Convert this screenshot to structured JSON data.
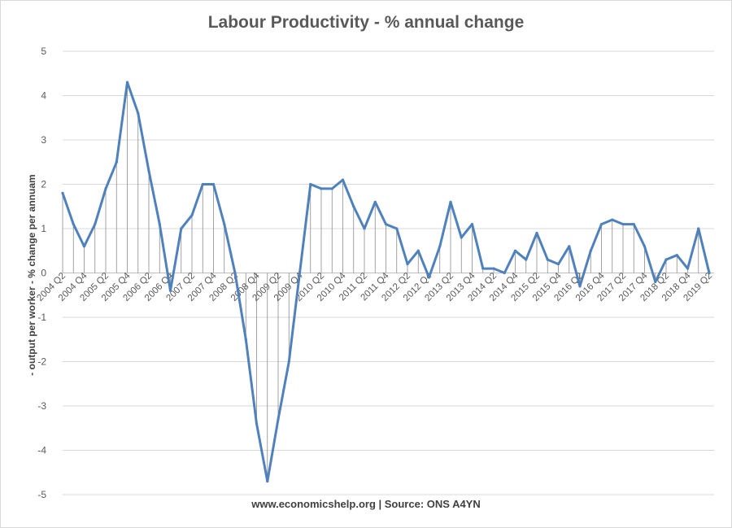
{
  "chart_data": {
    "type": "line",
    "title": "Labour Productivity - % annual change",
    "ylabel": "- output per worker - % change per annuam",
    "xlabel": "",
    "source": "www.economicshelp.org  | Source: ONS A4YN",
    "ylim": [
      -5,
      5
    ],
    "yticks": [
      -5,
      -4,
      -3,
      -2,
      -1,
      0,
      1,
      2,
      3,
      4,
      5
    ],
    "grid": true,
    "drop_lines": true,
    "legend": "none",
    "line_color": "#4f81bd",
    "categories": [
      "2004 Q2",
      "2004 Q3",
      "2004 Q4",
      "2005 Q1",
      "2005 Q2",
      "2005 Q3",
      "2005 Q4",
      "2006 Q1",
      "2006 Q2",
      "2006 Q3",
      "2006 Q4",
      "2007 Q1",
      "2007 Q2",
      "2007 Q3",
      "2007 Q4",
      "2008 Q1",
      "2008 Q2",
      "2008 Q3",
      "2008 Q4",
      "2009 Q1",
      "2009 Q2",
      "2009 Q3",
      "2009 Q4",
      "2010 Q1",
      "2010 Q2",
      "2010 Q3",
      "2010 Q4",
      "2011 Q1",
      "2011 Q2",
      "2011 Q3",
      "2011 Q4",
      "2012 Q1",
      "2012 Q2",
      "2012 Q3",
      "2012 Q4",
      "2013 Q1",
      "2013 Q2",
      "2013 Q3",
      "2013 Q4",
      "2014 Q1",
      "2014 Q2",
      "2014 Q3",
      "2014 Q4",
      "2015 Q1",
      "2015 Q2",
      "2015 Q3",
      "2015 Q4",
      "2016 Q1",
      "2016 Q2",
      "2016 Q3",
      "2016 Q4",
      "2017 Q1",
      "2017 Q2",
      "2017 Q3",
      "2017 Q4",
      "2018 Q1",
      "2018 Q2",
      "2018 Q3",
      "2018 Q4",
      "2019 Q1",
      "2019 Q2"
    ],
    "tick_labels": [
      "2004 Q2",
      "2004 Q4",
      "2005 Q2",
      "2005 Q4",
      "2006 Q2",
      "2006 Q4",
      "2007 Q2",
      "2007 Q4",
      "2008 Q2",
      "2008 Q4",
      "2009 Q2",
      "2009 Q4",
      "2010 Q2",
      "2010 Q4",
      "2011 Q2",
      "2011 Q4",
      "2012 Q2",
      "2012 Q4",
      "2013 Q2",
      "2013 Q4",
      "2014 Q2",
      "2014 Q4",
      "2015 Q2",
      "2015 Q4",
      "2016 Q2",
      "2016 Q4",
      "2017 Q2",
      "2017 Q4",
      "2018 Q2",
      "2018 Q4",
      "2019 Q2"
    ],
    "values": [
      1.8,
      1.1,
      0.6,
      1.1,
      1.9,
      2.5,
      4.3,
      3.6,
      2.3,
      1.1,
      -0.4,
      1.0,
      1.3,
      2.0,
      2.0,
      1.1,
      0.0,
      -1.5,
      -3.4,
      -4.7,
      -3.3,
      -2.0,
      0.0,
      2.0,
      1.9,
      1.9,
      2.1,
      1.5,
      1.0,
      1.6,
      1.1,
      1.0,
      0.2,
      0.5,
      -0.1,
      0.6,
      1.6,
      0.8,
      1.1,
      0.1,
      0.1,
      0.0,
      0.5,
      0.3,
      0.9,
      0.3,
      0.2,
      0.6,
      -0.3,
      0.5,
      1.1,
      1.2,
      1.1,
      1.1,
      0.6,
      -0.2,
      0.3,
      0.4,
      0.1,
      1.0,
      0.0
    ]
  }
}
